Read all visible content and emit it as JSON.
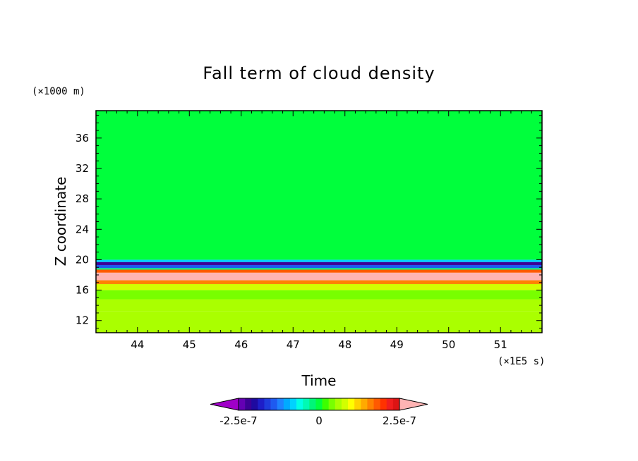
{
  "chart_data": {
    "type": "heatmap",
    "title": "Fall term of cloud density",
    "xlabel": "Time",
    "ylabel": "Z coordinate",
    "x_unit": "(×1E5 s)",
    "y_unit": "(×1000 m)",
    "xlim": [
      43.2,
      51.8
    ],
    "ylim": [
      10.4,
      39.6
    ],
    "x_ticks": [
      44,
      45,
      46,
      47,
      48,
      49,
      50,
      51
    ],
    "y_ticks": [
      12,
      16,
      20,
      24,
      28,
      32,
      36
    ],
    "grid": false,
    "bands": [
      {
        "z_from": 10.4,
        "z_to": 13.2,
        "value": 6.5e-08
      },
      {
        "z_from": 13.2,
        "z_to": 14.8,
        "value": 5.5e-08
      },
      {
        "z_from": 14.8,
        "z_to": 16.0,
        "value": 4.5e-08
      },
      {
        "z_from": 16.0,
        "z_to": 16.8,
        "value": 8.5e-08
      },
      {
        "z_from": 16.8,
        "z_to": 17.3,
        "value": 1.6e-07
      },
      {
        "z_from": 17.3,
        "z_to": 18.3,
        "value": 2.7e-07
      },
      {
        "z_from": 18.3,
        "z_to": 18.7,
        "value": 1.8e-07
      },
      {
        "z_from": 18.7,
        "z_to": 18.9,
        "value": -3e-08
      },
      {
        "z_from": 18.9,
        "z_to": 19.3,
        "value": -1.4e-07
      },
      {
        "z_from": 19.3,
        "z_to": 19.7,
        "value": -2.1e-07
      },
      {
        "z_from": 19.7,
        "z_to": 20.0,
        "value": -9e-08
      },
      {
        "z_from": 20.0,
        "z_to": 39.6,
        "value": 0.0
      }
    ],
    "colorbar": {
      "min": -2.5e-07,
      "max": 2.5e-07,
      "tick_labels": [
        "-2.5e-7",
        "0",
        "2.5e-7"
      ],
      "tick_values": [
        -2.5e-07,
        0,
        2.5e-07
      ],
      "under_color": "#a000c8",
      "over_color": "#ffb4b4",
      "colors": [
        "#6400b4",
        "#3c0096",
        "#1e0aa0",
        "#1e1ec8",
        "#1e3cdc",
        "#1e5af0",
        "#1e82ff",
        "#00aaff",
        "#00d2ff",
        "#00ffe6",
        "#00fab4",
        "#00f578",
        "#00ff3c",
        "#3cff00",
        "#78ff00",
        "#aaff00",
        "#d2ff00",
        "#ffff00",
        "#ffd200",
        "#ffaa00",
        "#ff8200",
        "#ff5a00",
        "#ff3200",
        "#f01e1e",
        "#dc1414"
      ]
    }
  }
}
